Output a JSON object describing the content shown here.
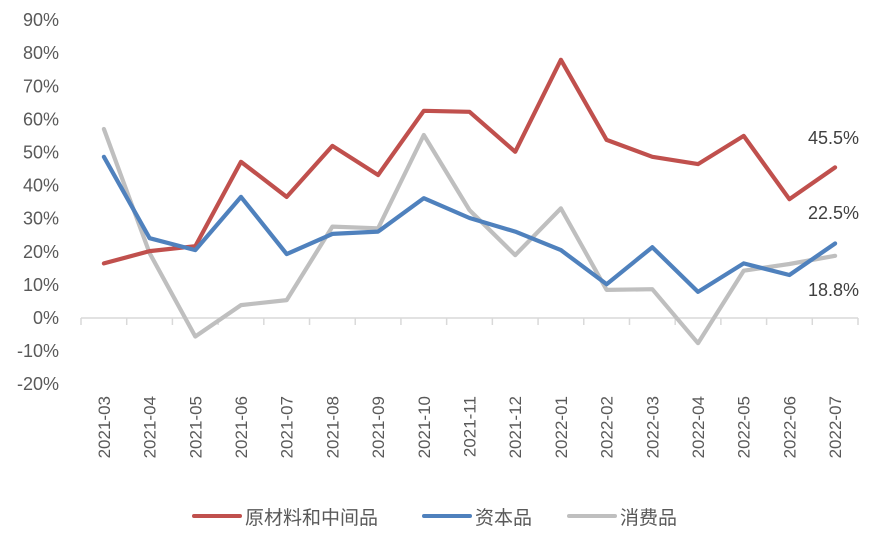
{
  "chart_data": {
    "type": "line",
    "title": "",
    "xlabel": "",
    "ylabel": "",
    "ylim": [
      -20,
      90
    ],
    "yticks": [
      "90%",
      "80%",
      "70%",
      "60%",
      "50%",
      "40%",
      "30%",
      "20%",
      "10%",
      "0%",
      "-10%",
      "-20%"
    ],
    "ytick_values": [
      90,
      80,
      70,
      60,
      50,
      40,
      30,
      20,
      10,
      0,
      -10,
      -20
    ],
    "grid": false,
    "legend_position": "bottom",
    "categories": [
      "2021-03",
      "2021-04",
      "2021-05",
      "2021-06",
      "2021-07",
      "2021-08",
      "2021-09",
      "2021-10",
      "2021-11",
      "2021-12",
      "2022-01",
      "2022-02",
      "2022-03",
      "2022-04",
      "2022-05",
      "2022-06",
      "2022-07"
    ],
    "series": [
      {
        "name": "原材料和中间品",
        "color": "#C0504D",
        "values": [
          16.5,
          20.2,
          21.7,
          47.2,
          36.6,
          52.0,
          43.2,
          62.6,
          62.3,
          50.2,
          78.0,
          53.8,
          48.7,
          46.5,
          55.0,
          35.9,
          45.5
        ],
        "end_label": "45.5%"
      },
      {
        "name": "资本品",
        "color": "#4F81BD",
        "values": [
          48.7,
          24.1,
          20.5,
          36.6,
          19.3,
          25.4,
          26.1,
          36.2,
          30.2,
          26.1,
          20.5,
          10.2,
          21.4,
          7.9,
          16.5,
          13.0,
          22.5
        ],
        "end_label": "22.5%"
      },
      {
        "name": "消费品",
        "color": "#BFBFBF",
        "values": [
          57.1,
          19.6,
          -5.6,
          3.9,
          5.4,
          27.6,
          27.1,
          55.3,
          32.6,
          19.0,
          33.1,
          8.5,
          8.7,
          -7.6,
          14.3,
          16.3,
          18.8
        ],
        "end_label": "18.8%"
      }
    ],
    "annotations": [
      {
        "text": "45.5%",
        "series": "原材料和中间品"
      },
      {
        "text": "22.5%",
        "series": "资本品"
      },
      {
        "text": "18.8%",
        "series": "消费品"
      }
    ]
  },
  "legend": {
    "items": [
      {
        "label": "原材料和中间品",
        "color": "#C0504D"
      },
      {
        "label": "资本品",
        "color": "#4F81BD"
      },
      {
        "label": "消费品",
        "color": "#BFBFBF"
      }
    ]
  },
  "axis": {
    "color": "#D9D9D9"
  }
}
